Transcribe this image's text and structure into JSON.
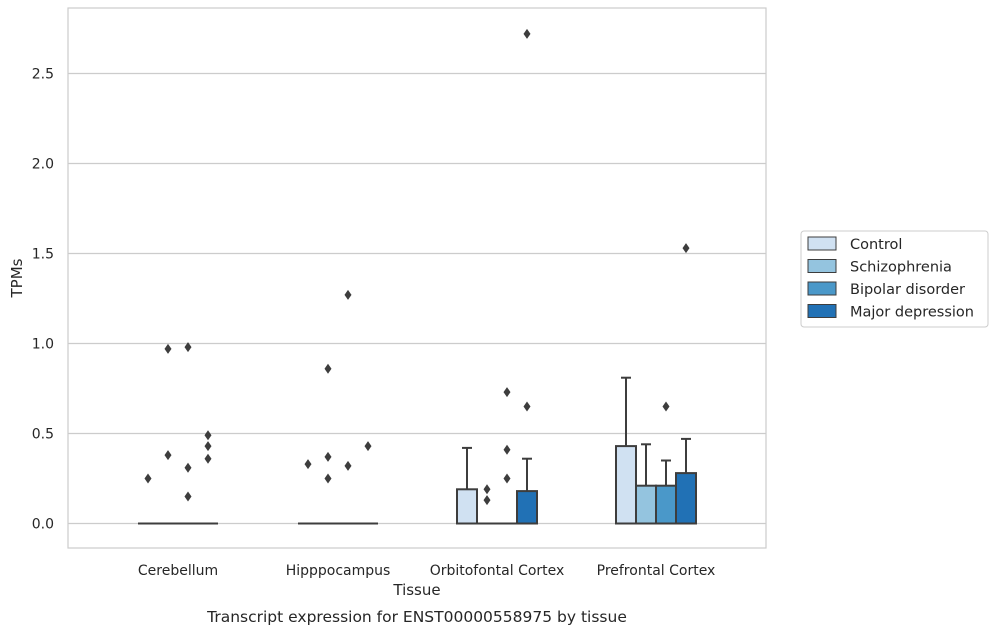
{
  "chart_data": {
    "type": "box",
    "title": "",
    "caption": "Transcript expression for ENST00000558975 by tissue",
    "xlabel": "Tissue",
    "ylabel": "TPMs",
    "ylim": [
      -0.13,
      2.87
    ],
    "yticks": [
      0.0,
      0.5,
      1.0,
      1.5,
      2.0,
      2.5
    ],
    "ytick_labels": [
      "0.0",
      "0.5",
      "1.0",
      "1.5",
      "2.0",
      "2.5"
    ],
    "grid": "horizontal",
    "legend_position": "right",
    "categories": [
      "Cerebellum",
      "Hipppocampus",
      "Orbitofontal Cortex",
      "Prefrontal Cortex"
    ],
    "series": [
      {
        "name": "Control",
        "color": "#d0e1f2",
        "boxes": [
          {
            "q1": 0,
            "median": 0,
            "q3": 0,
            "whisker_low": 0,
            "whisker_high": 0,
            "outliers": [
              0.25
            ]
          },
          {
            "q1": 0,
            "median": 0,
            "q3": 0,
            "whisker_low": 0,
            "whisker_high": 0,
            "outliers": [
              0.33
            ]
          },
          {
            "q1": 0,
            "median": 0,
            "q3": 0.19,
            "whisker_low": 0,
            "whisker_high": 0.42,
            "outliers": []
          },
          {
            "q1": 0,
            "median": 0,
            "q3": 0.43,
            "whisker_low": 0,
            "whisker_high": 0.81,
            "outliers": []
          }
        ]
      },
      {
        "name": "Schizophrenia",
        "color": "#94c4df",
        "boxes": [
          {
            "q1": 0,
            "median": 0,
            "q3": 0,
            "whisker_low": 0,
            "whisker_high": 0,
            "outliers": [
              0.97,
              0.38
            ]
          },
          {
            "q1": 0,
            "median": 0,
            "q3": 0,
            "whisker_low": 0,
            "whisker_high": 0,
            "outliers": [
              0.86,
              0.37,
              0.25
            ]
          },
          {
            "q1": 0,
            "median": 0,
            "q3": 0,
            "whisker_low": 0,
            "whisker_high": 0,
            "outliers": [
              0.19,
              0.13
            ]
          },
          {
            "q1": 0,
            "median": 0,
            "q3": 0.21,
            "whisker_low": 0,
            "whisker_high": 0.44,
            "outliers": []
          }
        ]
      },
      {
        "name": "Bipolar disorder",
        "color": "#4a98c9",
        "boxes": [
          {
            "q1": 0,
            "median": 0,
            "q3": 0,
            "whisker_low": 0,
            "whisker_high": 0,
            "outliers": [
              0.98,
              0.31,
              0.15
            ]
          },
          {
            "q1": 0,
            "median": 0,
            "q3": 0,
            "whisker_low": 0,
            "whisker_high": 0,
            "outliers": [
              1.27,
              0.32
            ]
          },
          {
            "q1": 0,
            "median": 0,
            "q3": 0,
            "whisker_low": 0,
            "whisker_high": 0,
            "outliers": [
              0.73,
              0.41,
              0.25
            ]
          },
          {
            "q1": 0,
            "median": 0,
            "q3": 0.21,
            "whisker_low": 0,
            "whisker_high": 0.35,
            "outliers": [
              0.65
            ]
          }
        ]
      },
      {
        "name": "Major depression",
        "color": "#2171b5",
        "boxes": [
          {
            "q1": 0,
            "median": 0,
            "q3": 0,
            "whisker_low": 0,
            "whisker_high": 0,
            "outliers": [
              0.49,
              0.43,
              0.36
            ]
          },
          {
            "q1": 0,
            "median": 0,
            "q3": 0,
            "whisker_low": 0,
            "whisker_high": 0,
            "outliers": [
              0.43
            ]
          },
          {
            "q1": 0,
            "median": 0,
            "q3": 0.18,
            "whisker_low": 0,
            "whisker_high": 0.36,
            "outliers": [
              2.72,
              0.65
            ]
          },
          {
            "q1": 0,
            "median": 0,
            "q3": 0.28,
            "whisker_low": 0,
            "whisker_high": 0.47,
            "outliers": [
              1.53
            ]
          }
        ]
      }
    ]
  }
}
